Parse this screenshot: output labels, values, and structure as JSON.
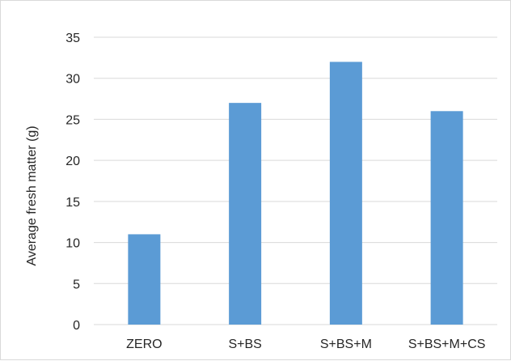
{
  "chart_data": {
    "type": "bar",
    "categories": [
      "ZERO",
      "S+BS",
      "S+BS+M",
      "S+BS+M+CS"
    ],
    "values": [
      11,
      27,
      32,
      26
    ],
    "xlabel": "",
    "ylabel": "Average fresh matter (g)",
    "ylim": [
      0,
      35
    ],
    "yticks": [
      0,
      5,
      10,
      15,
      20,
      25,
      30,
      35
    ],
    "grid": true,
    "legend": "none",
    "bar_color": "#5B9BD5",
    "grid_color": "#d9d9d9"
  }
}
